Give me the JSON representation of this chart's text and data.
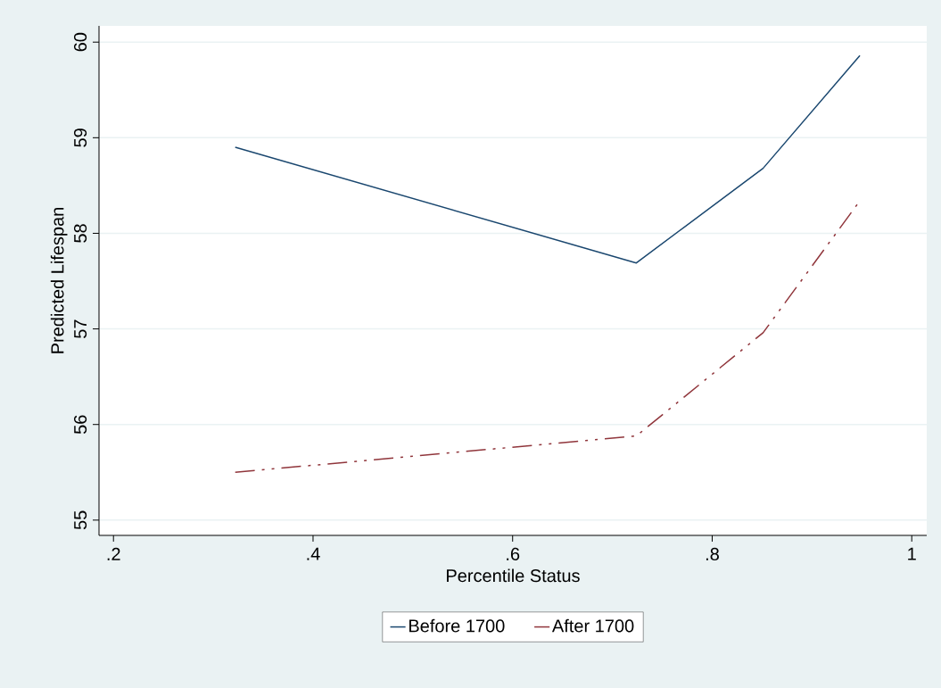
{
  "chart_data": {
    "type": "line",
    "xlabel": "Percentile Status",
    "ylabel": "Predicted Lifespan",
    "series": [
      {
        "name": "Before 1700",
        "color": "#1a476f",
        "line_style": "solid",
        "x": [
          0.322,
          0.724,
          0.851,
          0.948
        ],
        "values": [
          58.9,
          57.69,
          58.68,
          59.86
        ]
      },
      {
        "name": "After 1700",
        "color": "#90353b",
        "line_style": "dashdot",
        "x": [
          0.322,
          0.724,
          0.851,
          0.948
        ],
        "values": [
          55.5,
          55.88,
          56.96,
          58.34
        ]
      }
    ],
    "xlim": [
      0.1855,
      1.015
    ],
    "ylim": [
      54.84,
      60.17
    ],
    "xticks": [
      {
        "value": 0.2,
        "label": ".2"
      },
      {
        "value": 0.4,
        "label": ".4"
      },
      {
        "value": 0.6,
        "label": ".6"
      },
      {
        "value": 0.8,
        "label": ".8"
      },
      1
    ],
    "yticks": [
      55,
      56,
      57,
      58,
      59,
      60
    ],
    "grid": "y",
    "legend": "bottom",
    "marker": "none"
  }
}
